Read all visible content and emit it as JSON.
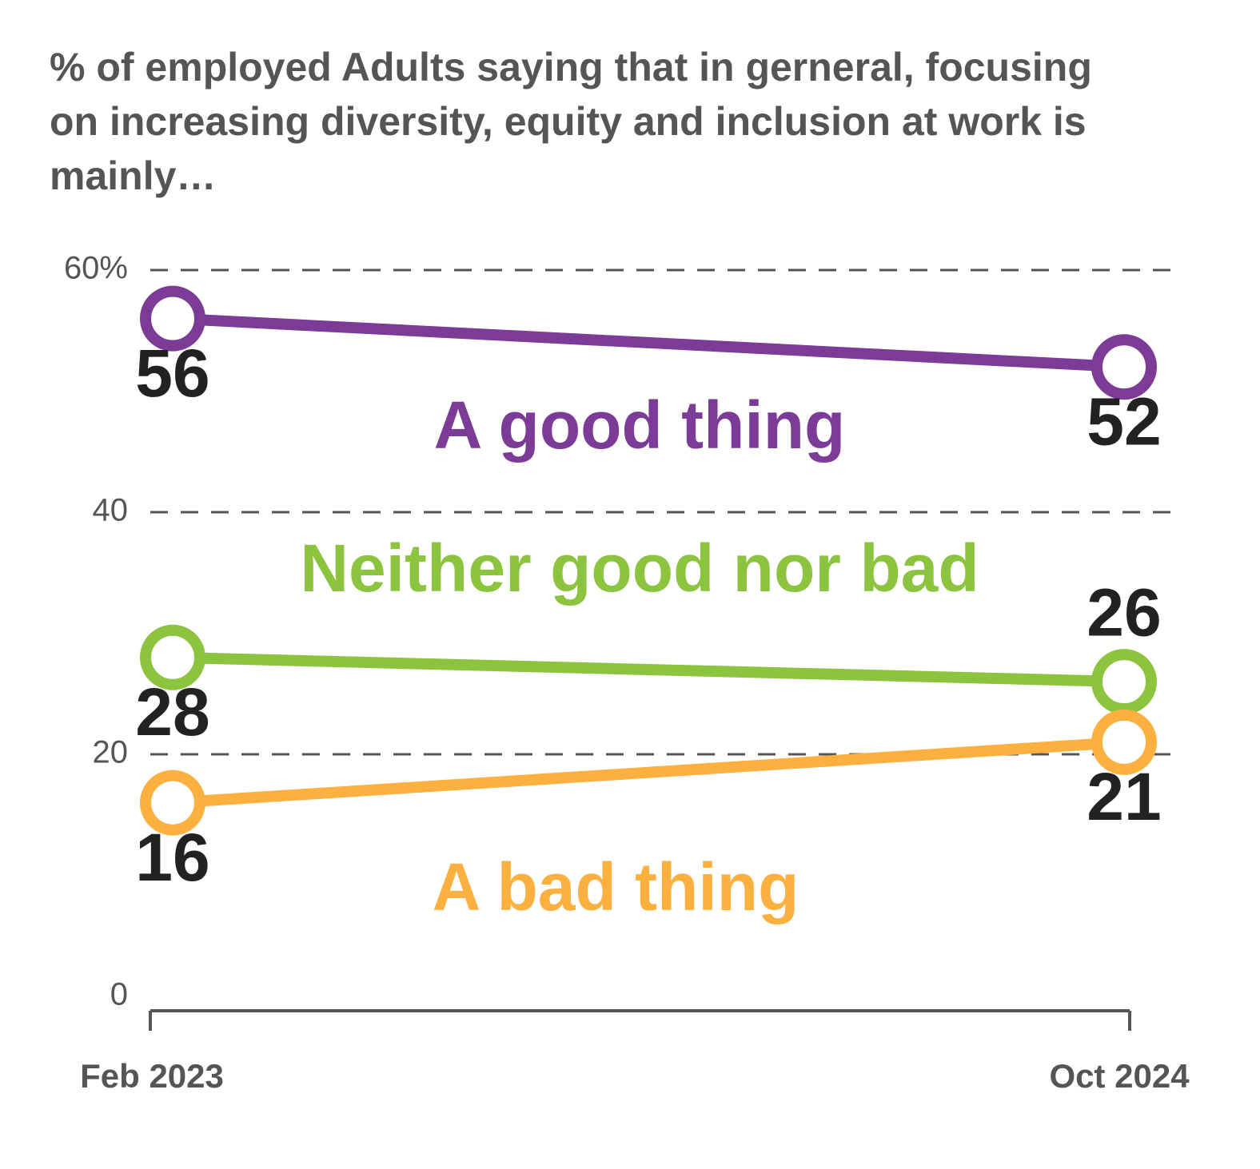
{
  "chart_data": {
    "type": "line",
    "title": "% of employed Adults saying that in gerneral, focusing on increasing diversity, equity and inclusion at work is mainly…",
    "categories": [
      "Feb 2023",
      "Oct 2024"
    ],
    "series": [
      {
        "name": "A good thing",
        "color": "#7b3b96",
        "values": [
          56,
          52
        ]
      },
      {
        "name": "Neither good nor bad",
        "color": "#8cc43f",
        "values": [
          28,
          26
        ]
      },
      {
        "name": "A bad thing",
        "color": "#fbb040",
        "values": [
          16,
          21
        ]
      }
    ],
    "ylim": [
      0,
      60
    ],
    "yticks": [
      0,
      20,
      40,
      {
        "value": 60,
        "label": "60%"
      }
    ],
    "grid": true
  }
}
